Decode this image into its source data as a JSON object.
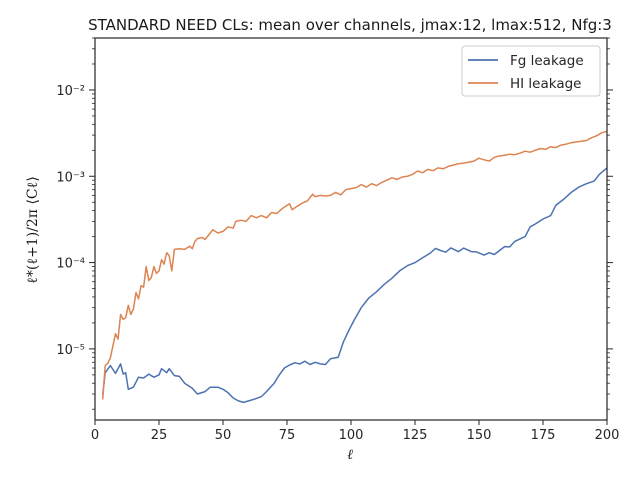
{
  "chart_data": {
    "type": "line",
    "title": "STANDARD NEED CLs: mean over channels, jmax:12, lmax:512, Nfg:3",
    "xlabel": "ℓ",
    "ylabel": "ℓ*(ℓ+1)/2π ⟨Cℓ⟩",
    "xlim": [
      0,
      200
    ],
    "ylim": [
      1.5e-06,
      0.04
    ],
    "yscale": "log",
    "grid": false,
    "legend_position": "top-right",
    "x_ticks": [
      "0",
      "25",
      "50",
      "75",
      "100",
      "125",
      "150",
      "175",
      "200"
    ],
    "y_ticks": [
      {
        "value": 1e-05,
        "label": "10⁻⁵"
      },
      {
        "value": 0.0001,
        "label": "10⁻⁴"
      },
      {
        "value": 0.001,
        "label": "10⁻³"
      },
      {
        "value": 0.01,
        "label": "10⁻²"
      }
    ],
    "series": [
      {
        "name": "Fg leakage",
        "color": "#4c72b0",
        "points": [
          [
            3,
            2.9e-06
          ],
          [
            4,
            5.3e-06
          ],
          [
            6,
            6.4e-06
          ],
          [
            8,
            5.2e-06
          ],
          [
            10,
            6.7e-06
          ],
          [
            11,
            5.1e-06
          ],
          [
            12,
            5.3e-06
          ],
          [
            13,
            3.4e-06
          ],
          [
            15,
            3.6e-06
          ],
          [
            17,
            4.7e-06
          ],
          [
            19,
            4.6e-06
          ],
          [
            21,
            5.1e-06
          ],
          [
            23,
            4.7e-06
          ],
          [
            25,
            5e-06
          ],
          [
            26,
            5.9e-06
          ],
          [
            28,
            5.3e-06
          ],
          [
            29,
            5.9e-06
          ],
          [
            31,
            4.9e-06
          ],
          [
            33,
            4.8e-06
          ],
          [
            35,
            4e-06
          ],
          [
            38,
            3.5e-06
          ],
          [
            40,
            3e-06
          ],
          [
            43,
            3.2e-06
          ],
          [
            45,
            3.6e-06
          ],
          [
            48,
            3.6e-06
          ],
          [
            50,
            3.4e-06
          ],
          [
            52,
            3.1e-06
          ],
          [
            54,
            2.7e-06
          ],
          [
            56,
            2.5e-06
          ],
          [
            58,
            2.4e-06
          ],
          [
            60,
            2.5e-06
          ],
          [
            62,
            2.6e-06
          ],
          [
            65,
            2.8e-06
          ],
          [
            67,
            3.2e-06
          ],
          [
            70,
            4e-06
          ],
          [
            72,
            5e-06
          ],
          [
            74,
            6e-06
          ],
          [
            76,
            6.5e-06
          ],
          [
            78,
            6.9e-06
          ],
          [
            80,
            6.7e-06
          ],
          [
            82,
            7.2e-06
          ],
          [
            84,
            6.6e-06
          ],
          [
            86,
            7e-06
          ],
          [
            88,
            6.7e-06
          ],
          [
            90,
            6.6e-06
          ],
          [
            92,
            7.7e-06
          ],
          [
            95,
            8e-06
          ],
          [
            97,
            1.2e-05
          ],
          [
            99,
            1.6e-05
          ],
          [
            101,
            2.1e-05
          ],
          [
            104,
            3e-05
          ],
          [
            107,
            3.9e-05
          ],
          [
            110,
            4.6e-05
          ],
          [
            113,
            5.6e-05
          ],
          [
            116,
            6.6e-05
          ],
          [
            119,
            8e-05
          ],
          [
            122,
            9.2e-05
          ],
          [
            125,
            0.0001
          ],
          [
            128,
            0.000114
          ],
          [
            131,
            0.000129
          ],
          [
            133,
            0.000146
          ],
          [
            135,
            0.000138
          ],
          [
            137,
            0.000132
          ],
          [
            139,
            0.000148
          ],
          [
            142,
            0.000134
          ],
          [
            144,
            0.000147
          ],
          [
            147,
            0.000134
          ],
          [
            149,
            0.000133
          ],
          [
            152,
            0.000122
          ],
          [
            154,
            0.00013
          ],
          [
            156,
            0.000124
          ],
          [
            158,
            0.000138
          ],
          [
            160,
            0.000153
          ],
          [
            162,
            0.000152
          ],
          [
            164,
            0.000176
          ],
          [
            166,
            0.000188
          ],
          [
            168,
            0.0002
          ],
          [
            170,
            0.00026
          ],
          [
            172,
            0.00028
          ],
          [
            175,
            0.00032
          ],
          [
            178,
            0.00035
          ],
          [
            180,
            0.00046
          ],
          [
            183,
            0.00054
          ],
          [
            186,
            0.00065
          ],
          [
            189,
            0.00075
          ],
          [
            192,
            0.00082
          ],
          [
            195,
            0.00088
          ],
          [
            197,
            0.00105
          ],
          [
            200,
            0.00125
          ]
        ]
      },
      {
        "name": "HI leakage",
        "color": "#dd8452",
        "points": [
          [
            3,
            2.6e-06
          ],
          [
            4,
            6.4e-06
          ],
          [
            5,
            6.8e-06
          ],
          [
            6,
            7.9e-06
          ],
          [
            8,
            1.5e-05
          ],
          [
            9,
            1.3e-05
          ],
          [
            10,
            2.5e-05
          ],
          [
            11,
            2.2e-05
          ],
          [
            12,
            2.3e-05
          ],
          [
            13,
            3.2e-05
          ],
          [
            14,
            2.5e-05
          ],
          [
            15,
            2.9e-05
          ],
          [
            16,
            4.5e-05
          ],
          [
            17,
            3.8e-05
          ],
          [
            18,
            5.4e-05
          ],
          [
            19,
            5.2e-05
          ],
          [
            20,
            9e-05
          ],
          [
            21,
            6.2e-05
          ],
          [
            22,
            6.7e-05
          ],
          [
            23,
            9e-05
          ],
          [
            24,
            7.5e-05
          ],
          [
            25,
            8e-05
          ],
          [
            26,
            0.000108
          ],
          [
            27,
            9.6e-05
          ],
          [
            28,
            0.00013
          ],
          [
            29,
            0.00012
          ],
          [
            30,
            8e-05
          ],
          [
            31,
            0.000142
          ],
          [
            33,
            0.000145
          ],
          [
            35,
            0.000142
          ],
          [
            37,
            0.000155
          ],
          [
            38,
            0.000145
          ],
          [
            39,
            0.000175
          ],
          [
            40,
            0.00019
          ],
          [
            42,
            0.000195
          ],
          [
            43,
            0.000185
          ],
          [
            45,
            0.00022
          ],
          [
            46,
            0.00024
          ],
          [
            48,
            0.00022
          ],
          [
            50,
            0.00023
          ],
          [
            52,
            0.00026
          ],
          [
            54,
            0.00025
          ],
          [
            55,
            0.0003
          ],
          [
            57,
            0.00031
          ],
          [
            59,
            0.0003
          ],
          [
            61,
            0.00035
          ],
          [
            63,
            0.00033
          ],
          [
            65,
            0.00035
          ],
          [
            67,
            0.00033
          ],
          [
            69,
            0.00038
          ],
          [
            71,
            0.00037
          ],
          [
            73,
            0.00042
          ],
          [
            75,
            0.00046
          ],
          [
            76,
            0.00048
          ],
          [
            77,
            0.00041
          ],
          [
            79,
            0.00045
          ],
          [
            81,
            0.00049
          ],
          [
            83,
            0.00052
          ],
          [
            85,
            0.00062
          ],
          [
            86,
            0.00058
          ],
          [
            88,
            0.0006
          ],
          [
            90,
            0.00059
          ],
          [
            92,
            0.0006
          ],
          [
            94,
            0.00065
          ],
          [
            96,
            0.00061
          ],
          [
            98,
            0.0007
          ],
          [
            100,
            0.00072
          ],
          [
            102,
            0.00074
          ],
          [
            104,
            0.0008
          ],
          [
            106,
            0.00075
          ],
          [
            108,
            0.00082
          ],
          [
            110,
            0.00078
          ],
          [
            112,
            0.00085
          ],
          [
            114,
            0.0009
          ],
          [
            116,
            0.00096
          ],
          [
            118,
            0.00092
          ],
          [
            120,
            0.00098
          ],
          [
            122,
            0.001
          ],
          [
            124,
            0.00105
          ],
          [
            126,
            0.00115
          ],
          [
            128,
            0.0011
          ],
          [
            130,
            0.0012
          ],
          [
            132,
            0.00116
          ],
          [
            134,
            0.00125
          ],
          [
            136,
            0.00122
          ],
          [
            138,
            0.0013
          ],
          [
            140,
            0.00135
          ],
          [
            142,
            0.0014
          ],
          [
            144,
            0.00142
          ],
          [
            146,
            0.00146
          ],
          [
            148,
            0.0015
          ],
          [
            150,
            0.00162
          ],
          [
            152,
            0.00155
          ],
          [
            154,
            0.0015
          ],
          [
            156,
            0.00166
          ],
          [
            158,
            0.00172
          ],
          [
            160,
            0.00175
          ],
          [
            162,
            0.0018
          ],
          [
            164,
            0.00178
          ],
          [
            166,
            0.00185
          ],
          [
            168,
            0.00195
          ],
          [
            170,
            0.0019
          ],
          [
            172,
            0.002
          ],
          [
            174,
            0.0021
          ],
          [
            176,
            0.00205
          ],
          [
            178,
            0.0022
          ],
          [
            180,
            0.00215
          ],
          [
            182,
            0.0023
          ],
          [
            184,
            0.00235
          ],
          [
            186,
            0.00245
          ],
          [
            188,
            0.0025
          ],
          [
            190,
            0.00255
          ],
          [
            192,
            0.0026
          ],
          [
            194,
            0.0028
          ],
          [
            196,
            0.00295
          ],
          [
            198,
            0.0032
          ],
          [
            200,
            0.0033
          ]
        ]
      }
    ]
  }
}
